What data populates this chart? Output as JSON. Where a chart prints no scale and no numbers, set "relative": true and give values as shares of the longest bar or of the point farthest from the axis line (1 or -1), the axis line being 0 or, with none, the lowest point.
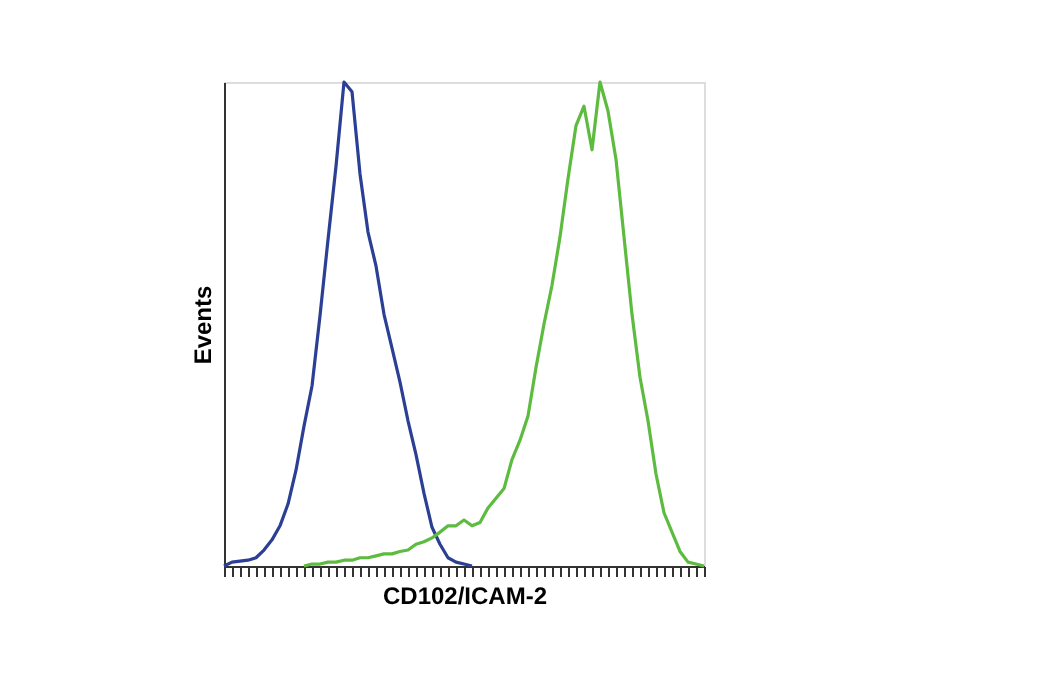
{
  "chart_data": {
    "type": "line",
    "relative": true,
    "xlabel": "CD102/ICAM-2",
    "ylabel": "Events",
    "tick_labels": false,
    "grid": false,
    "legend": false,
    "marker": "none",
    "line_style": "solid",
    "categories": [
      null,
      null,
      null,
      null,
      null,
      null,
      null,
      null,
      null,
      null,
      null,
      null,
      null,
      null,
      null,
      null,
      null,
      null,
      null,
      null,
      null,
      null,
      null,
      null,
      null,
      null,
      null,
      null,
      null,
      null,
      null,
      null,
      null,
      null,
      null,
      null,
      null,
      null,
      null,
      null,
      null,
      null,
      null,
      null,
      null,
      null,
      null,
      null,
      null,
      null,
      null,
      null,
      null,
      null,
      null,
      null,
      null,
      null,
      null,
      null,
      null
    ],
    "series": [
      {
        "color": "#2b3f95",
        "values": [
          0,
          0.008,
          0.01,
          0.012,
          0.017,
          0.033,
          0.054,
          0.083,
          0.128,
          0.198,
          0.289,
          0.372,
          0.517,
          0.674,
          0.826,
          1.0,
          0.98,
          0.81,
          0.69,
          0.62,
          0.52,
          0.45,
          0.38,
          0.3,
          0.23,
          0.15,
          0.08,
          0.045,
          0.017,
          0.008,
          0.004,
          0,
          null,
          null,
          null,
          null,
          null,
          null,
          null,
          null,
          null,
          null,
          null,
          null,
          null,
          null,
          null,
          null,
          null,
          null,
          null,
          null,
          null,
          null,
          null,
          null,
          null,
          null,
          null,
          null,
          null
        ]
      },
      {
        "color": "#5dbb3f",
        "values": [
          null,
          null,
          null,
          null,
          null,
          null,
          null,
          null,
          null,
          null,
          0,
          0.004,
          0.004,
          0.008,
          0.008,
          0.012,
          0.012,
          0.017,
          0.017,
          0.021,
          0.025,
          0.025,
          0.03,
          0.033,
          0.045,
          0.05,
          0.058,
          0.07,
          0.083,
          0.083,
          0.095,
          0.083,
          0.09,
          0.12,
          0.14,
          0.16,
          0.22,
          0.26,
          0.31,
          0.41,
          0.5,
          0.58,
          0.68,
          0.8,
          0.91,
          0.95,
          0.86,
          1.0,
          0.94,
          0.84,
          0.68,
          0.52,
          0.39,
          0.3,
          0.19,
          0.11,
          0.07,
          0.03,
          0.008,
          0.004,
          0
        ]
      }
    ]
  }
}
